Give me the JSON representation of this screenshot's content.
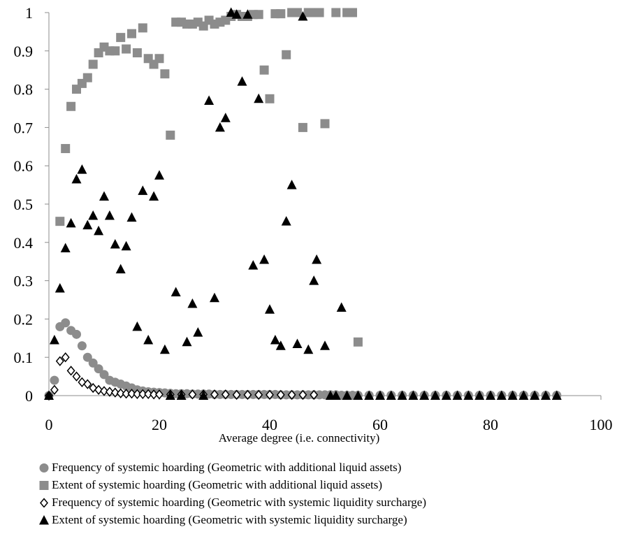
{
  "chart_data": {
    "type": "scatter",
    "title": "",
    "xlabel": "Average degree (i.e. connectivity)",
    "ylabel": "",
    "xlim": [
      0,
      100
    ],
    "ylim": [
      0,
      1
    ],
    "x_ticks": [
      "0",
      "20",
      "40",
      "60",
      "80",
      "100"
    ],
    "y_ticks": [
      "0",
      "0.1",
      "0.2",
      "0.3",
      "0.4",
      "0.5",
      "0.6",
      "0.7",
      "0.8",
      "0.9",
      "1"
    ],
    "grid": false,
    "legend_position": "bottom",
    "series": [
      {
        "name": "Frequency of systemic hoarding (Geometric with additional liquid assets)",
        "marker": "circle",
        "color": "#8c8c8c",
        "points": [
          [
            0,
            0
          ],
          [
            1,
            0.04
          ],
          [
            2,
            0.18
          ],
          [
            3,
            0.19
          ],
          [
            4,
            0.17
          ],
          [
            5,
            0.16
          ],
          [
            6,
            0.13
          ],
          [
            7,
            0.1
          ],
          [
            8,
            0.085
          ],
          [
            9,
            0.07
          ],
          [
            10,
            0.055
          ],
          [
            11,
            0.04
          ],
          [
            12,
            0.035
          ],
          [
            13,
            0.03
          ],
          [
            14,
            0.025
          ],
          [
            15,
            0.02
          ],
          [
            16,
            0.015
          ],
          [
            17,
            0.012
          ],
          [
            18,
            0.01
          ],
          [
            19,
            0.009
          ],
          [
            20,
            0.008
          ],
          [
            21,
            0.007
          ],
          [
            22,
            0.006
          ],
          [
            23,
            0.005
          ],
          [
            24,
            0.005
          ],
          [
            25,
            0.005
          ],
          [
            26,
            0.004
          ],
          [
            27,
            0.004
          ],
          [
            28,
            0.004
          ],
          [
            29,
            0.004
          ],
          [
            30,
            0.003
          ],
          [
            31,
            0.003
          ],
          [
            32,
            0.003
          ],
          [
            33,
            0.003
          ],
          [
            34,
            0.003
          ],
          [
            35,
            0.003
          ],
          [
            36,
            0.003
          ],
          [
            37,
            0.003
          ],
          [
            38,
            0.003
          ],
          [
            39,
            0.003
          ],
          [
            40,
            0.003
          ],
          [
            41,
            0.003
          ],
          [
            42,
            0.002
          ],
          [
            43,
            0.002
          ],
          [
            44,
            0.002
          ],
          [
            45,
            0.002
          ],
          [
            46,
            0.002
          ],
          [
            47,
            0.002
          ],
          [
            48,
            0.002
          ],
          [
            49,
            0.002
          ],
          [
            50,
            0.002
          ],
          [
            51,
            0.002
          ],
          [
            52,
            0.002
          ],
          [
            53,
            0.001
          ],
          [
            54,
            0.001
          ],
          [
            55,
            0.001
          ],
          [
            56,
            0.001
          ],
          [
            58,
            0.001
          ],
          [
            60,
            0.001
          ],
          [
            62,
            0.001
          ],
          [
            64,
            0.001
          ],
          [
            66,
            0.001
          ],
          [
            68,
            0.001
          ],
          [
            70,
            0.001
          ],
          [
            72,
            0.001
          ],
          [
            74,
            0.001
          ],
          [
            76,
            0.001
          ],
          [
            78,
            0.001
          ],
          [
            80,
            0.001
          ],
          [
            82,
            0.001
          ],
          [
            84,
            0.001
          ],
          [
            86,
            0.001
          ],
          [
            88,
            0.001
          ],
          [
            90,
            0.001
          ],
          [
            92,
            0.001
          ]
        ]
      },
      {
        "name": "Extent of systemic hoarding (Geometric with additional liquid assets)",
        "marker": "square",
        "color": "#8c8c8c",
        "points": [
          [
            2,
            0.455
          ],
          [
            3,
            0.645
          ],
          [
            4,
            0.755
          ],
          [
            5,
            0.8
          ],
          [
            6,
            0.815
          ],
          [
            7,
            0.83
          ],
          [
            8,
            0.865
          ],
          [
            9,
            0.895
          ],
          [
            10,
            0.91
          ],
          [
            11,
            0.9
          ],
          [
            12,
            0.9
          ],
          [
            13,
            0.935
          ],
          [
            14,
            0.905
          ],
          [
            15,
            0.945
          ],
          [
            16,
            0.895
          ],
          [
            17,
            0.96
          ],
          [
            18,
            0.88
          ],
          [
            19,
            0.865
          ],
          [
            20,
            0.88
          ],
          [
            21,
            0.84
          ],
          [
            22,
            0.68
          ],
          [
            23,
            0.975
          ],
          [
            24,
            0.975
          ],
          [
            25,
            0.97
          ],
          [
            26,
            0.97
          ],
          [
            27,
            0.975
          ],
          [
            28,
            0.965
          ],
          [
            29,
            0.98
          ],
          [
            30,
            0.97
          ],
          [
            31,
            0.975
          ],
          [
            32,
            0.98
          ],
          [
            33,
            0.99
          ],
          [
            34,
            0.995
          ],
          [
            35,
            0.99
          ],
          [
            36,
            0.99
          ],
          [
            37,
            0.995
          ],
          [
            38,
            0.995
          ],
          [
            39,
            0.85
          ],
          [
            40,
            0.775
          ],
          [
            41,
            0.997
          ],
          [
            42,
            0.997
          ],
          [
            43,
            0.89
          ],
          [
            44,
            1
          ],
          [
            45,
            1
          ],
          [
            46,
            0.7
          ],
          [
            47,
            1
          ],
          [
            48,
            1
          ],
          [
            49,
            1
          ],
          [
            50,
            0.71
          ],
          [
            52,
            1
          ],
          [
            54,
            1
          ],
          [
            56,
            0.14
          ],
          [
            55,
            1
          ]
        ]
      },
      {
        "name": "Frequency of systemic hoarding (Geometric with systemic liquidity surcharge)",
        "marker": "diamond",
        "color": "#000000",
        "points": [
          [
            0,
            0
          ],
          [
            1,
            0.015
          ],
          [
            2,
            0.09
          ],
          [
            3,
            0.1
          ],
          [
            4,
            0.065
          ],
          [
            5,
            0.05
          ],
          [
            6,
            0.035
          ],
          [
            7,
            0.03
          ],
          [
            8,
            0.02
          ],
          [
            9,
            0.015
          ],
          [
            10,
            0.012
          ],
          [
            11,
            0.01
          ],
          [
            12,
            0.008
          ],
          [
            13,
            0.006
          ],
          [
            14,
            0.005
          ],
          [
            15,
            0.005
          ],
          [
            16,
            0.004
          ],
          [
            17,
            0.004
          ],
          [
            18,
            0.004
          ],
          [
            19,
            0.003
          ],
          [
            20,
            0.003
          ],
          [
            22,
            0.003
          ],
          [
            24,
            0.003
          ],
          [
            26,
            0.003
          ],
          [
            28,
            0.003
          ],
          [
            30,
            0.003
          ],
          [
            32,
            0.003
          ],
          [
            34,
            0.002
          ],
          [
            36,
            0.002
          ],
          [
            38,
            0.002
          ],
          [
            40,
            0.002
          ],
          [
            42,
            0.002
          ],
          [
            44,
            0.002
          ],
          [
            46,
            0.002
          ],
          [
            48,
            0.002
          ]
        ]
      },
      {
        "name": "Extent of systemic hoarding (Geometric with systemic liquidity surcharge)",
        "marker": "triangle",
        "color": "#000000",
        "points": [
          [
            0,
            0
          ],
          [
            1,
            0.145
          ],
          [
            2,
            0.28
          ],
          [
            3,
            0.385
          ],
          [
            4,
            0.45
          ],
          [
            5,
            0.565
          ],
          [
            6,
            0.59
          ],
          [
            7,
            0.445
          ],
          [
            8,
            0.47
          ],
          [
            9,
            0.43
          ],
          [
            10,
            0.52
          ],
          [
            11,
            0.47
          ],
          [
            12,
            0.395
          ],
          [
            13,
            0.33
          ],
          [
            14,
            0.39
          ],
          [
            15,
            0.465
          ],
          [
            16,
            0.18
          ],
          [
            17,
            0.535
          ],
          [
            18,
            0.145
          ],
          [
            19,
            0.52
          ],
          [
            20,
            0.575
          ],
          [
            21,
            0.12
          ],
          [
            22,
            0
          ],
          [
            23,
            0.27
          ],
          [
            24,
            0
          ],
          [
            25,
            0.14
          ],
          [
            26,
            0.24
          ],
          [
            27,
            0.165
          ],
          [
            28,
            0
          ],
          [
            29,
            0.77
          ],
          [
            30,
            0.255
          ],
          [
            31,
            0.7
          ],
          [
            32,
            0.725
          ],
          [
            33,
            1
          ],
          [
            34,
            0.995
          ],
          [
            35,
            0.82
          ],
          [
            36,
            0.995
          ],
          [
            37,
            0.34
          ],
          [
            38,
            0.775
          ],
          [
            39,
            0.355
          ],
          [
            40,
            0.225
          ],
          [
            41,
            0.145
          ],
          [
            42,
            0.13
          ],
          [
            43,
            0.455
          ],
          [
            44,
            0.55
          ],
          [
            45,
            0.135
          ],
          [
            46,
            0.99
          ],
          [
            47,
            0.12
          ],
          [
            48,
            0.3
          ],
          [
            48.5,
            0.355
          ],
          [
            50,
            0.13
          ],
          [
            51,
            0
          ],
          [
            52,
            0
          ],
          [
            53,
            0.23
          ],
          [
            54,
            0
          ],
          [
            56,
            0
          ],
          [
            58,
            0
          ],
          [
            60,
            0
          ],
          [
            62,
            0
          ],
          [
            64,
            0
          ],
          [
            66,
            0
          ],
          [
            68,
            0
          ],
          [
            70,
            0
          ],
          [
            72,
            0
          ],
          [
            74,
            0
          ],
          [
            76,
            0
          ],
          [
            78,
            0
          ],
          [
            80,
            0
          ],
          [
            82,
            0
          ],
          [
            84,
            0
          ],
          [
            86,
            0
          ],
          [
            88,
            0
          ],
          [
            90,
            0
          ],
          [
            92,
            0
          ]
        ]
      }
    ]
  }
}
